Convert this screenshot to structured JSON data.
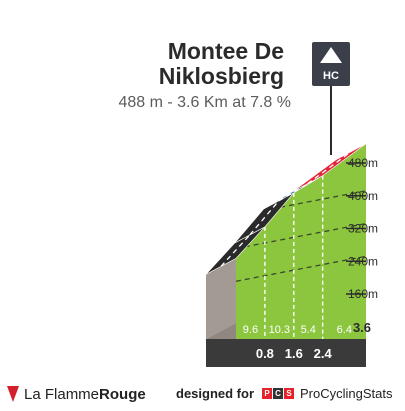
{
  "climb": {
    "title_line1": "Montee De",
    "title_line2": "Niklosbierg",
    "subtitle": "488 m - 3.6 Km at 7.8 %",
    "category_badge": "HC"
  },
  "chart_data": {
    "type": "area",
    "title": "Montee De Niklosbierg",
    "subtitle": "488 m - 3.6 Km at 7.8 %",
    "x_unit": "km",
    "y_unit": "m",
    "xlim": [
      0,
      3.6
    ],
    "ylim": [
      160,
      480
    ],
    "y_ticks": [
      "480m",
      "400m",
      "320m",
      "240m",
      "160m"
    ],
    "y_tick_values": [
      480,
      400,
      320,
      240,
      160
    ],
    "profile": {
      "x": [
        0,
        0.8,
        1.6,
        2.4,
        3.6
      ],
      "elevation": [
        208,
        285,
        368,
        410,
        488
      ]
    },
    "segments": [
      {
        "from_km": 0,
        "to_km": 0.8,
        "gradient": "9.6",
        "color": "#2a2a2a"
      },
      {
        "from_km": 0.8,
        "to_km": 1.6,
        "gradient": "10.3",
        "color": "#2a2a2a"
      },
      {
        "from_km": 1.6,
        "to_km": 2.4,
        "gradient": "5.4",
        "color": "#2b6e9e"
      },
      {
        "from_km": 2.4,
        "to_km": 3.6,
        "gradient": "6.4",
        "color": "#e4253a"
      }
    ],
    "km_markers": [
      "0.8",
      "1.6",
      "2.4"
    ],
    "distance_end": "3.6",
    "fill_color": "#8cc63f",
    "base_color": "#3a3a3a",
    "grid": true
  },
  "footer": {
    "brand_prefix": "La Flamme",
    "brand_suffix": "Rouge",
    "credit_prefix": "designed for",
    "credit_logo_letters": [
      "P",
      "C",
      "S"
    ],
    "credit_name": "ProCyclingStats"
  }
}
